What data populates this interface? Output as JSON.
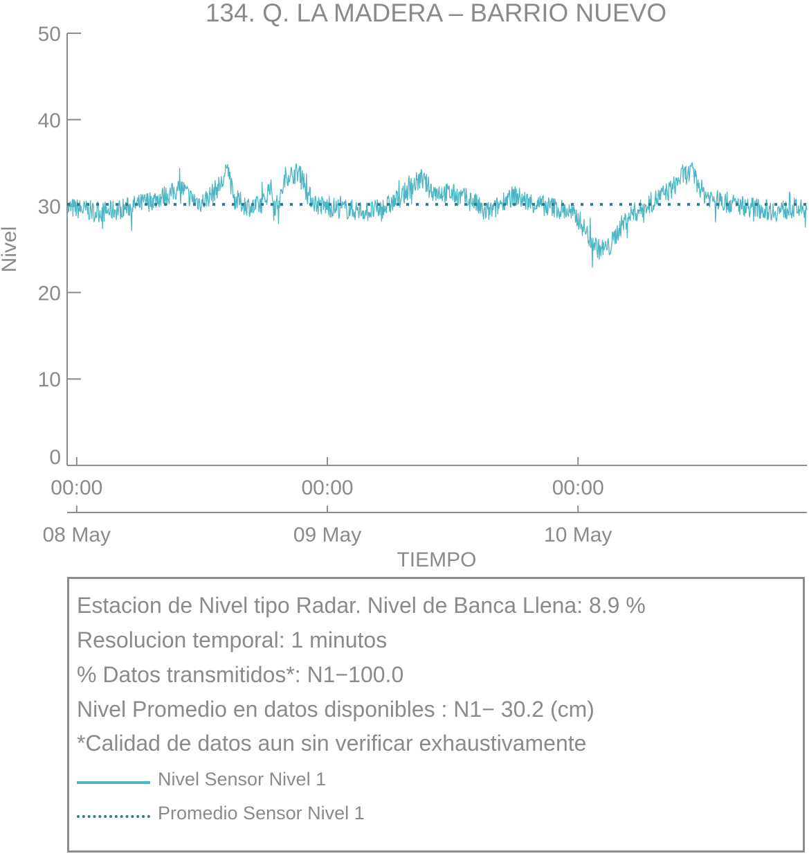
{
  "colors": {
    "level_series": "#4db6c4",
    "mean_series": "#2e7a93",
    "text": "#8a8a8a",
    "axis": "#8c8c8c"
  },
  "chart_data": {
    "type": "line",
    "title": "134. Q. LA MADERA – BARRIO NUEVO",
    "ylabel": "Nivel",
    "xlabel": "TIEMPO",
    "ylim": [
      0,
      50
    ],
    "yticks": [
      "0",
      "10",
      "20",
      "30",
      "40",
      "50"
    ],
    "xlim": [
      "2024-05-07 23:05",
      "2024-05-10 21:55"
    ],
    "xticks": [
      {
        "time": "2024-05-08 00:00",
        "label": "00:00",
        "date": "08 May"
      },
      {
        "time": "2024-05-09 00:00",
        "label": "00:00",
        "date": "09 May"
      },
      {
        "time": "2024-05-10 00:00",
        "label": "00:00",
        "date": "10 May"
      }
    ],
    "grid": false,
    "legend_position": "bottom",
    "series": [
      {
        "name": "Nivel Sensor Nivel 1",
        "style": "solid",
        "x": [
          "2024-05-07 23:05",
          "2024-05-08 00:00",
          "2024-05-08 01:00",
          "2024-05-08 02:00",
          "2024-05-08 03:00",
          "2024-05-08 04:00",
          "2024-05-08 05:00",
          "2024-05-08 06:00",
          "2024-05-08 07:00",
          "2024-05-08 08:00",
          "2024-05-08 09:00",
          "2024-05-08 10:00",
          "2024-05-08 11:00",
          "2024-05-08 12:00",
          "2024-05-08 13:00",
          "2024-05-08 14:00",
          "2024-05-08 14:30",
          "2024-05-08 15:00",
          "2024-05-08 16:00",
          "2024-05-08 17:00",
          "2024-05-08 18:00",
          "2024-05-08 18:30",
          "2024-05-08 19:00",
          "2024-05-08 19:30",
          "2024-05-08 20:00",
          "2024-05-08 21:00",
          "2024-05-08 21:30",
          "2024-05-08 22:00",
          "2024-05-08 23:00",
          "2024-05-09 00:00",
          "2024-05-09 01:00",
          "2024-05-09 02:00",
          "2024-05-09 03:00",
          "2024-05-09 04:00",
          "2024-05-09 05:00",
          "2024-05-09 06:00",
          "2024-05-09 07:00",
          "2024-05-09 08:00",
          "2024-05-09 09:00",
          "2024-05-09 10:00",
          "2024-05-09 11:00",
          "2024-05-09 12:00",
          "2024-05-09 13:00",
          "2024-05-09 14:00",
          "2024-05-09 15:00",
          "2024-05-09 16:00",
          "2024-05-09 17:00",
          "2024-05-09 18:00",
          "2024-05-09 19:00",
          "2024-05-09 20:00",
          "2024-05-09 21:00",
          "2024-05-09 22:00",
          "2024-05-09 23:00",
          "2024-05-10 00:00",
          "2024-05-10 01:00",
          "2024-05-10 02:00",
          "2024-05-10 03:00",
          "2024-05-10 04:00",
          "2024-05-10 05:00",
          "2024-05-10 06:00",
          "2024-05-10 07:00",
          "2024-05-10 08:00",
          "2024-05-10 09:00",
          "2024-05-10 10:00",
          "2024-05-10 11:00",
          "2024-05-10 12:00",
          "2024-05-10 13:00",
          "2024-05-10 14:00",
          "2024-05-10 15:00",
          "2024-05-10 16:00",
          "2024-05-10 17:00",
          "2024-05-10 18:00",
          "2024-05-10 19:00",
          "2024-05-10 20:00",
          "2024-05-10 21:00",
          "2024-05-10 21:55"
        ],
        "y": [
          29.8,
          29.7,
          29.5,
          29.3,
          29.4,
          29.6,
          29.9,
          30.2,
          30.6,
          31.0,
          31.4,
          32.2,
          30.8,
          30.4,
          31.5,
          32.8,
          34.5,
          30.9,
          30.2,
          29.8,
          30.5,
          32.5,
          29.9,
          30.8,
          33.5,
          33.8,
          34.2,
          31.5,
          30.2,
          29.9,
          29.8,
          29.6,
          29.5,
          29.4,
          29.6,
          30.2,
          31.0,
          32.2,
          33.2,
          31.8,
          31.6,
          31.4,
          31.0,
          30.6,
          29.2,
          29.6,
          30.8,
          31.2,
          30.6,
          30.2,
          30.0,
          29.8,
          29.4,
          28.6,
          26.5,
          25.0,
          25.2,
          27.5,
          29.0,
          29.6,
          30.4,
          31.2,
          32.0,
          33.6,
          33.8,
          31.5,
          30.8,
          30.5,
          30.2,
          30.0,
          29.8,
          29.6,
          29.4,
          29.6,
          29.8,
          29.2
        ]
      },
      {
        "name": "Promedio Sensor Nivel 1",
        "style": "dotted",
        "x": [
          "2024-05-07 23:05",
          "2024-05-10 21:55"
        ],
        "y": [
          30.2,
          30.2
        ]
      }
    ]
  },
  "info": {
    "lines": [
      "Estacion de Nivel tipo Radar. Nivel de Banca Llena:  8.9 %",
      "Resolucion temporal: 1 minutos",
      "% Datos transmitidos*: N1−100.0",
      "Nivel Promedio en datos disponibles : N1− 30.2 (cm)",
      "*Calidad de datos aun sin verificar exhaustivamente"
    ],
    "legend": [
      {
        "label": "Nivel Sensor Nivel 1",
        "swatch": "solid"
      },
      {
        "label": "Promedio Sensor Nivel 1",
        "swatch": "dotted"
      }
    ]
  }
}
